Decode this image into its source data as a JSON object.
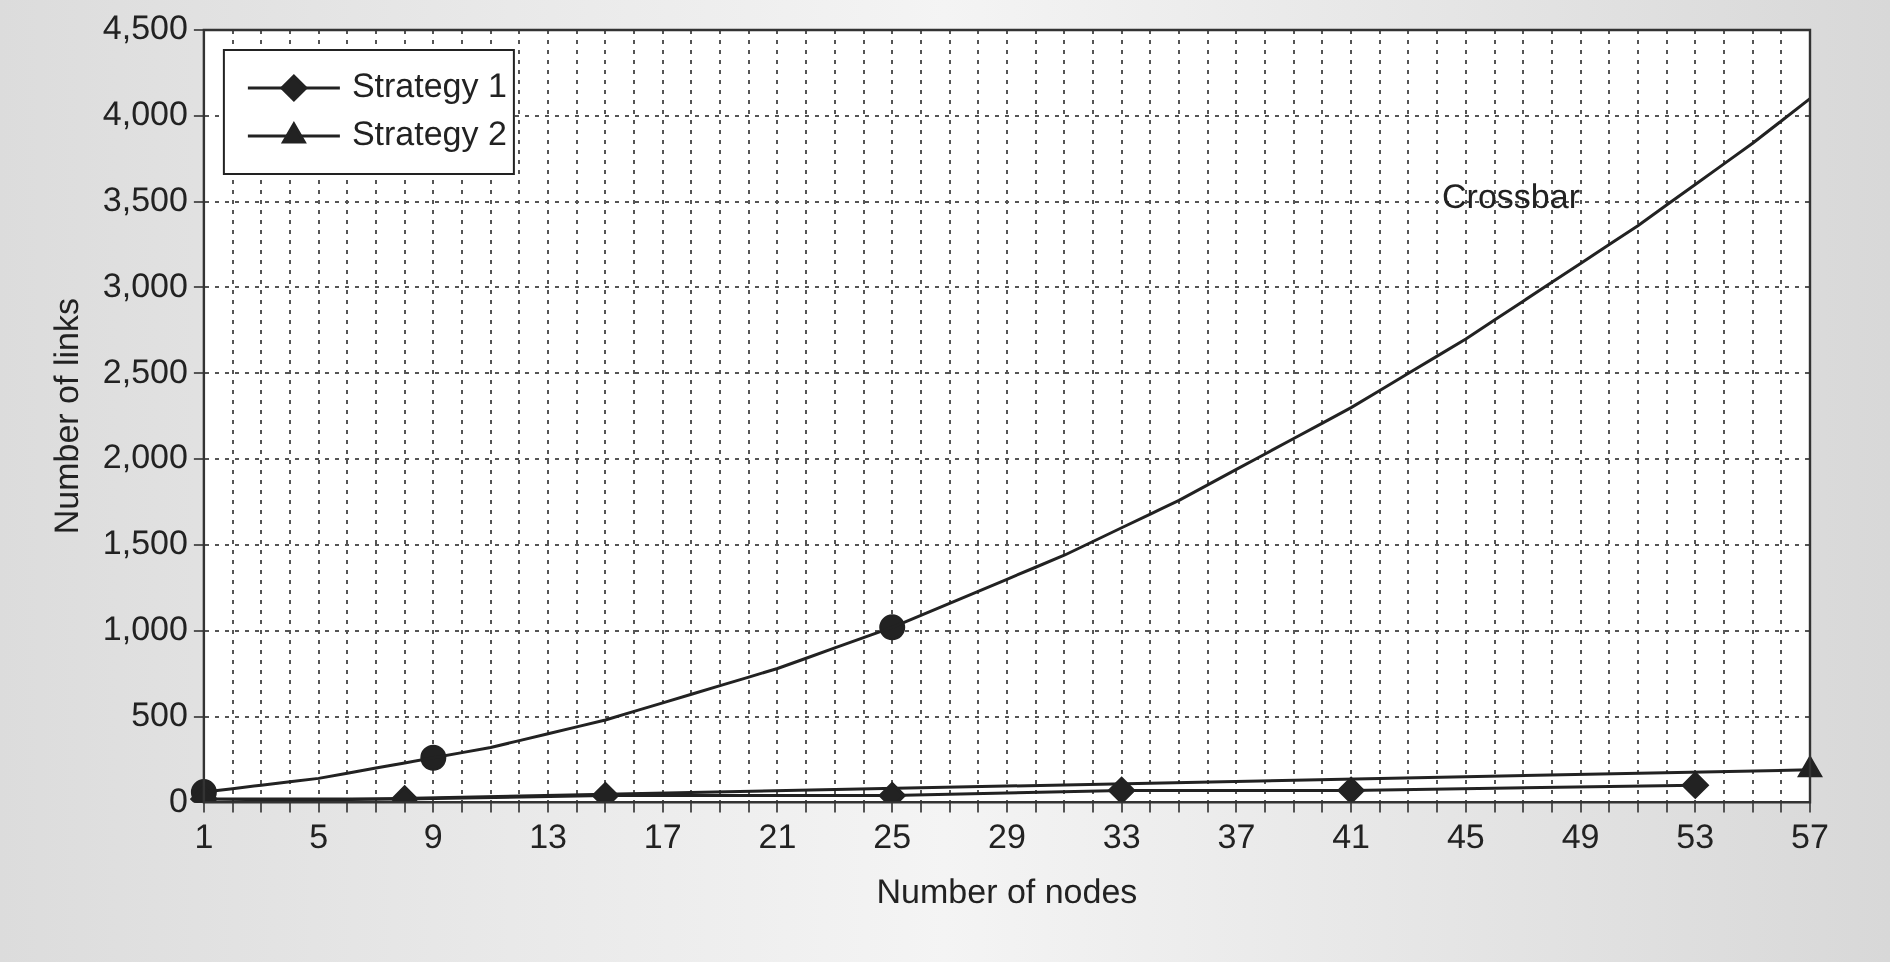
{
  "chart_data": {
    "type": "line",
    "xlabel": "Number of nodes",
    "ylabel": "Number of links",
    "categories": [
      "1",
      null,
      null,
      null,
      "5",
      null,
      null,
      null,
      "9",
      null,
      null,
      null,
      "13",
      null,
      null,
      null,
      "17",
      null,
      null,
      null,
      "21",
      null,
      null,
      null,
      "25",
      null,
      null,
      null,
      "29",
      null,
      null,
      null,
      "33",
      null,
      null,
      null,
      "37",
      null,
      null,
      null,
      "41",
      null,
      null,
      null,
      "45",
      null,
      null,
      null,
      "49",
      null,
      null,
      null,
      "53",
      null,
      null,
      null,
      "57"
    ],
    "ylim": [
      0,
      4500
    ],
    "yticks": [
      0,
      {
        "value": 500,
        "label": "500"
      },
      {
        "value": 1000,
        "label": "1,000"
      },
      {
        "value": 1500,
        "label": "1,500"
      },
      {
        "value": 2000,
        "label": "2,000"
      },
      {
        "value": 2500,
        "label": "2,500"
      },
      {
        "value": 3000,
        "label": "3,000"
      },
      {
        "value": 3500,
        "label": "3,500"
      },
      {
        "value": 4000,
        "label": "4,000"
      },
      {
        "value": 4500,
        "label": "4,500"
      }
    ],
    "grid": true,
    "legend": "top left",
    "line_style": "solid",
    "series": [
      {
        "name": "Strategy 1",
        "color": "#222222",
        "marker": "diamond",
        "values": [
          20,
          null,
          null,
          null,
          null,
          null,
          null,
          20,
          null,
          null,
          null,
          null,
          null,
          null,
          40,
          null,
          null,
          null,
          null,
          null,
          null,
          null,
          null,
          null,
          40,
          null,
          null,
          null,
          null,
          null,
          null,
          null,
          70,
          null,
          null,
          null,
          null,
          null,
          null,
          null,
          70,
          null,
          null,
          null,
          null,
          null,
          null,
          null,
          null,
          null,
          null,
          null,
          100,
          null,
          null,
          null,
          null
        ]
      },
      {
        "name": "Strategy 2",
        "color": "#222222",
        "marker": "triangle",
        "values": [
          0,
          null,
          null,
          null,
          null,
          null,
          null,
          null,
          null,
          null,
          null,
          null,
          null,
          null,
          null,
          null,
          null,
          null,
          null,
          null,
          null,
          null,
          null,
          null,
          null,
          null,
          null,
          null,
          null,
          null,
          null,
          null,
          null,
          null,
          null,
          null,
          null,
          null,
          null,
          null,
          null,
          null,
          null,
          null,
          null,
          null,
          null,
          null,
          null,
          null,
          null,
          null,
          null,
          null,
          null,
          null,
          190
        ]
      },
      {
        "name": "Crossbar",
        "color": "#222222",
        "marker": "none",
        "values": [
          60,
          80,
          100,
          120,
          140,
          170,
          200,
          230,
          260,
          290,
          320,
          360,
          400,
          440,
          480,
          530,
          580,
          630,
          680,
          730,
          780,
          840,
          900,
          960,
          1020,
          1090,
          1160,
          1230,
          1300,
          1370,
          1440,
          1520,
          1600,
          1680,
          1760,
          1850,
          1940,
          2030,
          2120,
          2210,
          2300,
          2400,
          2500,
          2600,
          2700,
          2810,
          2920,
          3030,
          3140,
          3250,
          3360,
          3480,
          3600,
          3720,
          3840,
          3970,
          4100
        ]
      },
      {
        "type": "scatter",
        "color": "#222222",
        "marker": "circle",
        "x": [
          "1",
          "9",
          "25"
        ],
        "values": [
          60,
          260,
          1020
        ]
      }
    ]
  }
}
